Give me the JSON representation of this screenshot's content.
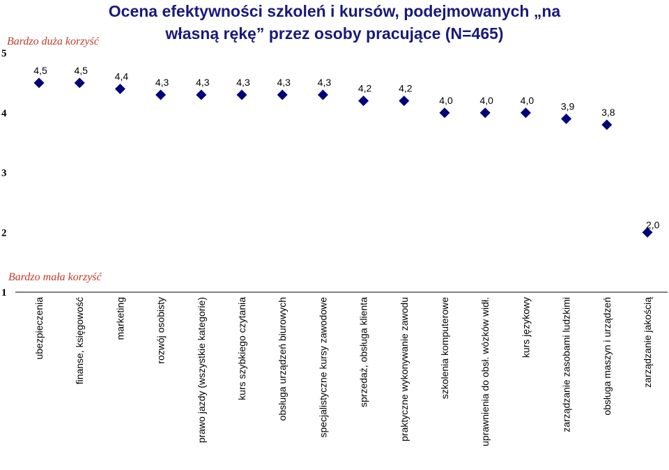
{
  "chart_data": {
    "type": "scatter",
    "title_lines": [
      "Ocena efektywności szkoleń i kursów, podejmowanych „na",
      "własną rękę” przez osoby pracujące (N=465)"
    ],
    "annotation_top": "Bardzo duża korzyść",
    "annotation_bottom": "Bardzo mała korzyść",
    "ylim": [
      1,
      5
    ],
    "yticks": [
      "1",
      "2",
      "3",
      "4",
      "5"
    ],
    "categories": [
      "ubezpieczenia",
      "finanse, księgowość",
      "marketing",
      "rozwój osobisty",
      "prawo jazdy (wszystkie kategorie)",
      "kurs szybkiego czytania",
      "obsługa urządzeń biurowych",
      "specjalistyczne kursy zawodowe",
      "sprzedaż, obsługa klienta",
      "praktyczne wykonywanie zawodu",
      "szkolenia komputerowe",
      "uprawnienia do obsł. wózków widł.",
      "kurs językowy",
      "zarządzanie zasobami ludzkimi",
      "obsługa maszyn i urządzeń",
      "zarządzanie jakością"
    ],
    "values": [
      4.5,
      4.5,
      4.4,
      4.3,
      4.3,
      4.3,
      4.3,
      4.3,
      4.2,
      4.2,
      4.0,
      4.0,
      4.0,
      3.9,
      3.8,
      2.0
    ],
    "value_labels": [
      "4,5",
      "4,5",
      "4,4",
      "4,3",
      "4,3",
      "4,3",
      "4,3",
      "4,3",
      "4,2",
      "4,2",
      "4,0",
      "4,0",
      "4,0",
      "3,9",
      "3,8",
      "2,0"
    ],
    "marker_color": "#00007a",
    "title_color": "#1a1a7a",
    "annotation_color": "#c0392b"
  }
}
